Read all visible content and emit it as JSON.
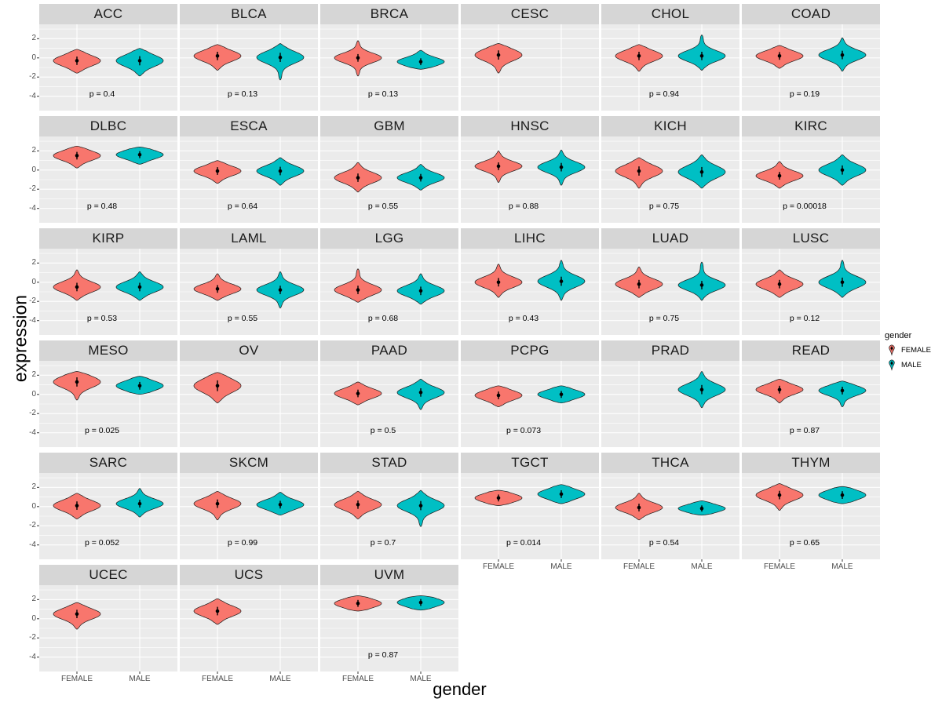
{
  "chart_data": {
    "type": "violin",
    "title": "",
    "xlabel": "gender",
    "ylabel": "expression",
    "categories": [
      "FEMALE",
      "MALE"
    ],
    "y_ticks": [
      2,
      0,
      -2,
      -4
    ],
    "y_domain": [
      -5.5,
      3.5
    ],
    "grid": true,
    "legend": {
      "title": "gender",
      "position": "right",
      "entries": [
        {
          "label": "FEMALE",
          "color": "#F8766D"
        },
        {
          "label": "MALE",
          "color": "#00BFC4"
        }
      ]
    },
    "facets": [
      {
        "name": "ACC",
        "p_label": "p = 0.4",
        "female": {
          "mean": -0.3,
          "sd": 0.55,
          "min": -1.6,
          "max": 0.9
        },
        "male": {
          "mean": -0.3,
          "sd": 0.6,
          "min": -1.9,
          "max": 1.0
        }
      },
      {
        "name": "BLCA",
        "p_label": "p = 0.13",
        "female": {
          "mean": 0.2,
          "sd": 0.55,
          "min": -1.3,
          "max": 1.4
        },
        "male": {
          "mean": 0.05,
          "sd": 0.6,
          "min": -2.3,
          "max": 1.5
        }
      },
      {
        "name": "BRCA",
        "p_label": "p = 0.13",
        "female": {
          "mean": 0.0,
          "sd": 0.5,
          "min": -1.9,
          "max": 1.8
        },
        "male": {
          "mean": -0.4,
          "sd": 0.45,
          "min": -1.2,
          "max": 0.8
        }
      },
      {
        "name": "CESC",
        "p_label": null,
        "female": {
          "mean": 0.3,
          "sd": 0.6,
          "min": -1.6,
          "max": 1.5
        },
        "male": null
      },
      {
        "name": "CHOL",
        "p_label": "p = 0.94",
        "female": {
          "mean": 0.2,
          "sd": 0.55,
          "min": -1.4,
          "max": 1.4
        },
        "male": {
          "mean": 0.2,
          "sd": 0.55,
          "min": -1.3,
          "max": 2.4
        }
      },
      {
        "name": "COAD",
        "p_label": "p = 0.19",
        "female": {
          "mean": 0.2,
          "sd": 0.5,
          "min": -1.1,
          "max": 1.3
        },
        "male": {
          "mean": 0.3,
          "sd": 0.55,
          "min": -1.4,
          "max": 2.1
        }
      },
      {
        "name": "DLBC",
        "p_label": "p = 0.48",
        "female": {
          "mean": 1.5,
          "sd": 0.5,
          "min": 0.2,
          "max": 2.5
        },
        "male": {
          "mean": 1.6,
          "sd": 0.45,
          "min": 0.6,
          "max": 2.4
        }
      },
      {
        "name": "ESCA",
        "p_label": "p = 0.64",
        "female": {
          "mean": -0.1,
          "sd": 0.5,
          "min": -1.4,
          "max": 1.0
        },
        "male": {
          "mean": -0.1,
          "sd": 0.55,
          "min": -1.6,
          "max": 1.3
        }
      },
      {
        "name": "GBM",
        "p_label": "p = 0.55",
        "female": {
          "mean": -0.8,
          "sd": 0.55,
          "min": -2.3,
          "max": 0.8
        },
        "male": {
          "mean": -0.8,
          "sd": 0.5,
          "min": -2.1,
          "max": 0.6
        }
      },
      {
        "name": "HNSC",
        "p_label": "p = 0.88",
        "female": {
          "mean": 0.4,
          "sd": 0.5,
          "min": -1.3,
          "max": 2.0
        },
        "male": {
          "mean": 0.3,
          "sd": 0.55,
          "min": -1.6,
          "max": 2.1
        }
      },
      {
        "name": "KICH",
        "p_label": "p = 0.75",
        "female": {
          "mean": -0.1,
          "sd": 0.6,
          "min": -1.9,
          "max": 1.3
        },
        "male": {
          "mean": -0.2,
          "sd": 0.65,
          "min": -1.9,
          "max": 1.6
        }
      },
      {
        "name": "KIRC",
        "p_label": "p = 0.00018",
        "female": {
          "mean": -0.6,
          "sd": 0.5,
          "min": -1.9,
          "max": 0.9
        },
        "male": {
          "mean": 0.0,
          "sd": 0.6,
          "min": -1.6,
          "max": 1.6
        }
      },
      {
        "name": "KIRP",
        "p_label": "p = 0.53",
        "female": {
          "mean": -0.5,
          "sd": 0.55,
          "min": -1.9,
          "max": 1.3
        },
        "male": {
          "mean": -0.5,
          "sd": 0.55,
          "min": -1.9,
          "max": 1.1
        }
      },
      {
        "name": "LAML",
        "p_label": "p = 0.55",
        "female": {
          "mean": -0.7,
          "sd": 0.5,
          "min": -1.9,
          "max": 0.9
        },
        "male": {
          "mean": -0.8,
          "sd": 0.55,
          "min": -2.7,
          "max": 1.1
        }
      },
      {
        "name": "LGG",
        "p_label": "p = 0.68",
        "female": {
          "mean": -0.8,
          "sd": 0.55,
          "min": -2.1,
          "max": 1.4
        },
        "male": {
          "mean": -0.9,
          "sd": 0.55,
          "min": -2.3,
          "max": 0.9
        }
      },
      {
        "name": "LIHC",
        "p_label": "p = 0.43",
        "female": {
          "mean": 0.0,
          "sd": 0.55,
          "min": -1.6,
          "max": 1.9
        },
        "male": {
          "mean": 0.1,
          "sd": 0.6,
          "min": -1.9,
          "max": 2.3
        }
      },
      {
        "name": "LUAD",
        "p_label": "p = 0.75",
        "female": {
          "mean": -0.2,
          "sd": 0.55,
          "min": -1.6,
          "max": 1.6
        },
        "male": {
          "mean": -0.3,
          "sd": 0.55,
          "min": -1.9,
          "max": 2.1
        }
      },
      {
        "name": "LUSC",
        "p_label": "p = 0.12",
        "female": {
          "mean": -0.2,
          "sd": 0.55,
          "min": -1.6,
          "max": 1.3
        },
        "male": {
          "mean": 0.0,
          "sd": 0.6,
          "min": -1.6,
          "max": 2.3
        }
      },
      {
        "name": "MESO",
        "p_label": "p = 0.025",
        "female": {
          "mean": 1.3,
          "sd": 0.6,
          "min": -0.6,
          "max": 2.4
        },
        "male": {
          "mean": 0.9,
          "sd": 0.5,
          "min": 0.0,
          "max": 1.9
        }
      },
      {
        "name": "OV",
        "p_label": null,
        "female": {
          "mean": 0.9,
          "sd": 0.7,
          "min": -0.9,
          "max": 2.3
        },
        "male": null
      },
      {
        "name": "PAAD",
        "p_label": "p = 0.5",
        "female": {
          "mean": 0.1,
          "sd": 0.5,
          "min": -1.1,
          "max": 1.3
        },
        "male": {
          "mean": 0.2,
          "sd": 0.55,
          "min": -1.6,
          "max": 1.6
        }
      },
      {
        "name": "PCPG",
        "p_label": "p = 0.073",
        "female": {
          "mean": -0.1,
          "sd": 0.5,
          "min": -1.3,
          "max": 0.9
        },
        "male": {
          "mean": 0.0,
          "sd": 0.45,
          "min": -0.9,
          "max": 0.9
        }
      },
      {
        "name": "PRAD",
        "p_label": null,
        "female": null,
        "male": {
          "mean": 0.5,
          "sd": 0.6,
          "min": -1.4,
          "max": 2.4
        }
      },
      {
        "name": "READ",
        "p_label": "p = 0.87",
        "female": {
          "mean": 0.5,
          "sd": 0.5,
          "min": -0.9,
          "max": 1.6
        },
        "male": {
          "mean": 0.4,
          "sd": 0.5,
          "min": -1.3,
          "max": 1.4
        }
      },
      {
        "name": "SARC",
        "p_label": "p = 0.052",
        "female": {
          "mean": 0.1,
          "sd": 0.55,
          "min": -1.3,
          "max": 1.4
        },
        "male": {
          "mean": 0.3,
          "sd": 0.5,
          "min": -1.1,
          "max": 1.9
        }
      },
      {
        "name": "SKCM",
        "p_label": "p = 0.99",
        "female": {
          "mean": 0.3,
          "sd": 0.55,
          "min": -1.4,
          "max": 1.6
        },
        "male": {
          "mean": 0.2,
          "sd": 0.5,
          "min": -0.9,
          "max": 1.5
        }
      },
      {
        "name": "STAD",
        "p_label": "p = 0.7",
        "female": {
          "mean": 0.2,
          "sd": 0.55,
          "min": -1.3,
          "max": 1.6
        },
        "male": {
          "mean": 0.1,
          "sd": 0.6,
          "min": -2.1,
          "max": 1.7
        }
      },
      {
        "name": "TGCT",
        "p_label": "p = 0.014",
        "female": {
          "mean": 0.9,
          "sd": 0.45,
          "min": 0.1,
          "max": 1.7
        },
        "male": {
          "mean": 1.3,
          "sd": 0.5,
          "min": 0.3,
          "max": 2.3
        }
      },
      {
        "name": "THCA",
        "p_label": "p = 0.54",
        "female": {
          "mean": -0.1,
          "sd": 0.5,
          "min": -1.4,
          "max": 1.4
        },
        "male": {
          "mean": -0.2,
          "sd": 0.4,
          "min": -0.9,
          "max": 0.6
        }
      },
      {
        "name": "THYM",
        "p_label": "p = 0.65",
        "female": {
          "mean": 1.2,
          "sd": 0.55,
          "min": -0.4,
          "max": 2.4
        },
        "male": {
          "mean": 1.2,
          "sd": 0.5,
          "min": 0.3,
          "max": 2.1
        }
      },
      {
        "name": "UCEC",
        "p_label": null,
        "female": {
          "mean": 0.5,
          "sd": 0.55,
          "min": -1.1,
          "max": 1.7
        },
        "male": null
      },
      {
        "name": "UCS",
        "p_label": null,
        "female": {
          "mean": 0.8,
          "sd": 0.55,
          "min": -0.6,
          "max": 2.1
        },
        "male": null
      },
      {
        "name": "UVM",
        "p_label": "p = 0.87",
        "female": {
          "mean": 1.6,
          "sd": 0.45,
          "min": 0.8,
          "max": 2.4
        },
        "male": {
          "mean": 1.7,
          "sd": 0.45,
          "min": 0.9,
          "max": 2.4
        }
      }
    ]
  }
}
